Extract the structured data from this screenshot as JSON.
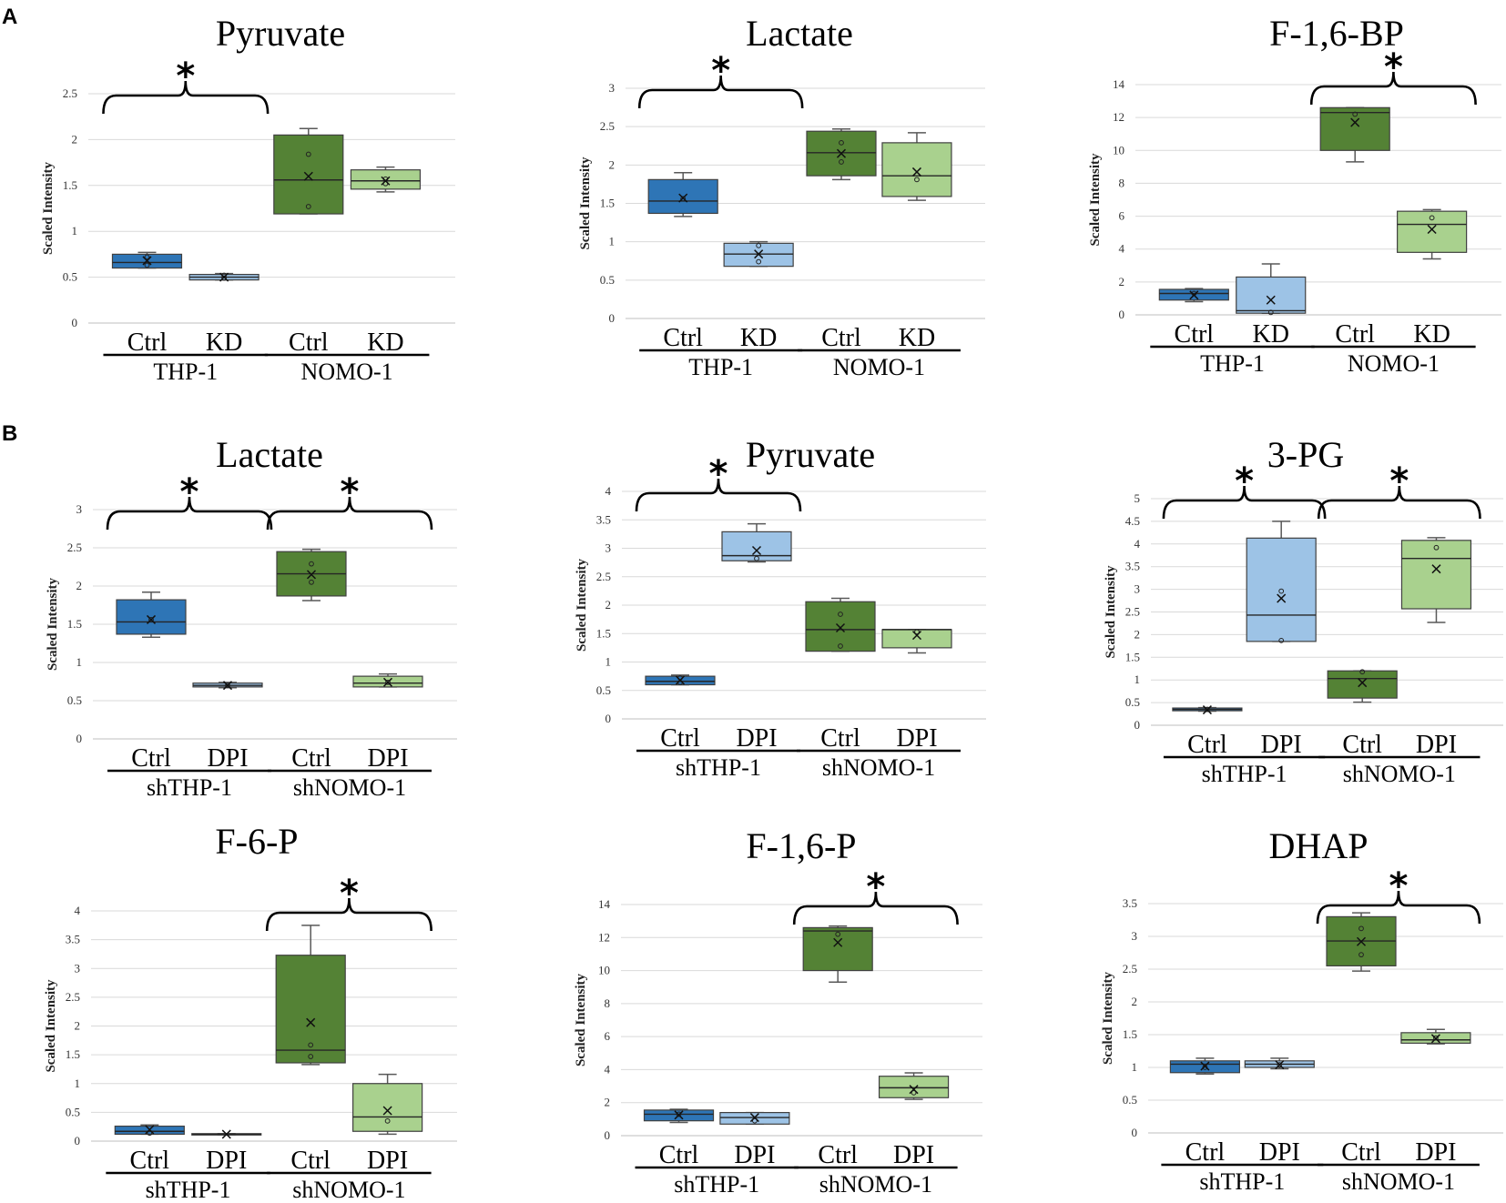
{
  "panels": [
    {
      "label": "A"
    },
    {
      "label": "B"
    }
  ],
  "colors": {
    "THP1_ctrl": "#2e75b6",
    "THP1_treat": "#9dc3e6",
    "NOMO1_ctrl": "#548235",
    "NOMO1_treat": "#a9d18e",
    "grid": "#d9d9d9",
    "whisker": "#595959"
  },
  "chart_data": [
    {
      "type": "box",
      "panel": "A",
      "title": "Pyruvate",
      "ylabel": "Scaled Intensity",
      "ylim": [
        0,
        2.5
      ],
      "yticks": [
        "0",
        "0.5",
        "1",
        "1.5",
        "2",
        "2.5"
      ],
      "categories": [
        "Ctrl",
        "KD",
        "Ctrl",
        "KD"
      ],
      "groups": [
        "THP-1",
        "NOMO-1"
      ],
      "boxes": [
        {
          "min": 0.6,
          "q1": 0.6,
          "median": 0.66,
          "q3": 0.75,
          "max": 0.77,
          "mean": 0.68,
          "points": [
            0.63,
            0.72
          ]
        },
        {
          "min": 0.47,
          "q1": 0.47,
          "median": 0.5,
          "q3": 0.53,
          "max": 0.54,
          "mean": 0.5,
          "points": [
            0.49,
            0.52
          ]
        },
        {
          "min": 1.19,
          "q1": 1.19,
          "median": 1.56,
          "q3": 2.05,
          "max": 2.12,
          "mean": 1.6,
          "points": [
            1.27,
            1.84
          ]
        },
        {
          "min": 1.43,
          "q1": 1.46,
          "median": 1.55,
          "q3": 1.67,
          "max": 1.7,
          "mean": 1.55,
          "points": [
            1.52,
            1.57
          ]
        }
      ],
      "significance": [
        {
          "groups": [
            0,
            1
          ],
          "label": "*"
        }
      ]
    },
    {
      "type": "box",
      "panel": "A",
      "title": "Lactate",
      "ylabel": "Scaled Intensity",
      "ylim": [
        0,
        3
      ],
      "yticks": [
        "0",
        "0.5",
        "1",
        "1.5",
        "2",
        "2.5",
        "3"
      ],
      "categories": [
        "Ctrl",
        "KD",
        "Ctrl",
        "KD"
      ],
      "groups": [
        "THP-1",
        "NOMO-1"
      ],
      "boxes": [
        {
          "min": 1.33,
          "q1": 1.37,
          "median": 1.53,
          "q3": 1.81,
          "max": 1.9,
          "mean": 1.57,
          "points": [
            1.56
          ]
        },
        {
          "min": 0.68,
          "q1": 0.68,
          "median": 0.84,
          "q3": 0.98,
          "max": 1.0,
          "mean": 0.84,
          "points": [
            0.74,
            0.95
          ]
        },
        {
          "min": 1.81,
          "q1": 1.86,
          "median": 2.16,
          "q3": 2.44,
          "max": 2.47,
          "mean": 2.15,
          "points": [
            2.04,
            2.29
          ]
        },
        {
          "min": 1.54,
          "q1": 1.59,
          "median": 1.86,
          "q3": 2.29,
          "max": 2.42,
          "mean": 1.91,
          "points": [
            1.81
          ]
        }
      ],
      "significance": [
        {
          "groups": [
            0,
            1
          ],
          "label": "*"
        }
      ]
    },
    {
      "type": "box",
      "panel": "A",
      "title": "F-1,6-BP",
      "ylabel": "Scaled Intensity",
      "ylim": [
        0,
        14
      ],
      "yticks": [
        "0",
        "2",
        "4",
        "6",
        "8",
        "10",
        "12",
        "14"
      ],
      "categories": [
        "Ctrl",
        "KD",
        "Ctrl",
        "KD"
      ],
      "groups": [
        "THP-1",
        "NOMO-1"
      ],
      "boxes": [
        {
          "min": 0.8,
          "q1": 0.9,
          "median": 1.3,
          "q3": 1.55,
          "max": 1.6,
          "mean": 1.2,
          "points": [
            1.3
          ]
        },
        {
          "min": 0.1,
          "q1": 0.1,
          "median": 0.25,
          "q3": 2.3,
          "max": 3.1,
          "mean": 0.9,
          "points": [
            0.15
          ]
        },
        {
          "min": 9.3,
          "q1": 10.0,
          "median": 12.3,
          "q3": 12.6,
          "max": 12.6,
          "mean": 11.7,
          "points": [
            12.2
          ]
        },
        {
          "min": 3.4,
          "q1": 3.8,
          "median": 5.5,
          "q3": 6.3,
          "max": 6.4,
          "mean": 5.2,
          "points": [
            5.9
          ]
        }
      ],
      "significance": [
        {
          "groups": [
            2,
            3
          ],
          "label": "*"
        }
      ]
    },
    {
      "type": "box",
      "panel": "B",
      "title": "Lactate",
      "ylabel": "Scaled Intensity",
      "ylim": [
        0,
        3
      ],
      "yticks": [
        "0",
        "0.5",
        "1",
        "1.5",
        "2",
        "2.5",
        "3"
      ],
      "categories": [
        "Ctrl",
        "DPI",
        "Ctrl",
        "DPI"
      ],
      "groups": [
        "shTHP-1",
        "shNOMO-1"
      ],
      "boxes": [
        {
          "min": 1.33,
          "q1": 1.37,
          "median": 1.53,
          "q3": 1.82,
          "max": 1.92,
          "mean": 1.56,
          "points": [
            1.56
          ]
        },
        {
          "min": 0.67,
          "q1": 0.68,
          "median": 0.7,
          "q3": 0.73,
          "max": 0.74,
          "mean": 0.7,
          "points": [
            0.7
          ]
        },
        {
          "min": 1.81,
          "q1": 1.87,
          "median": 2.16,
          "q3": 2.45,
          "max": 2.48,
          "mean": 2.15,
          "points": [
            2.05,
            2.29
          ]
        },
        {
          "min": 0.68,
          "q1": 0.68,
          "median": 0.73,
          "q3": 0.82,
          "max": 0.85,
          "mean": 0.74,
          "points": [
            0.74
          ]
        }
      ],
      "significance": [
        {
          "groups": [
            0,
            1
          ],
          "label": "*"
        },
        {
          "groups": [
            2,
            3
          ],
          "label": "*"
        }
      ]
    },
    {
      "type": "box",
      "panel": "B",
      "title": "Pyruvate",
      "ylabel": "Scaled Intensity",
      "ylim": [
        0,
        4
      ],
      "yticks": [
        "0",
        "0.5",
        "1",
        "1.5",
        "2",
        "2.5",
        "3",
        "3.5",
        "4"
      ],
      "categories": [
        "Ctrl",
        "DPI",
        "Ctrl",
        "DPI"
      ],
      "groups": [
        "shTHP-1",
        "shNOMO-1"
      ],
      "boxes": [
        {
          "min": 0.6,
          "q1": 0.6,
          "median": 0.66,
          "q3": 0.75,
          "max": 0.77,
          "mean": 0.68,
          "points": [
            0.64,
            0.72
          ]
        },
        {
          "min": 2.76,
          "q1": 2.78,
          "median": 2.87,
          "q3": 3.29,
          "max": 3.43,
          "mean": 2.96,
          "points": [
            2.82
          ]
        },
        {
          "min": 1.19,
          "q1": 1.19,
          "median": 1.57,
          "q3": 2.06,
          "max": 2.12,
          "mean": 1.6,
          "points": [
            1.28,
            1.84
          ]
        },
        {
          "min": 1.16,
          "q1": 1.25,
          "median": 1.57,
          "q3": 1.57,
          "max": 1.57,
          "mean": 1.47,
          "points": [
            1.53
          ]
        }
      ],
      "significance": [
        {
          "groups": [
            0,
            1
          ],
          "label": "*"
        }
      ]
    },
    {
      "type": "box",
      "panel": "B",
      "title": "3-PG",
      "ylabel": "Scaled Intensity",
      "ylim": [
        0,
        5
      ],
      "yticks": [
        "0",
        "0.5",
        "1",
        "1.5",
        "2",
        "2.5",
        "3",
        "3.5",
        "4",
        "4.5",
        "5"
      ],
      "categories": [
        "Ctrl",
        "DPI",
        "Ctrl",
        "DPI"
      ],
      "groups": [
        "shTHP-1",
        "shNOMO-1"
      ],
      "boxes": [
        {
          "min": 0.31,
          "q1": 0.32,
          "median": 0.35,
          "q3": 0.38,
          "max": 0.39,
          "mean": 0.34,
          "points": [
            0.35
          ]
        },
        {
          "min": 1.85,
          "q1": 1.85,
          "median": 2.43,
          "q3": 4.13,
          "max": 4.5,
          "mean": 2.8,
          "points": [
            1.87,
            2.96
          ]
        },
        {
          "min": 0.51,
          "q1": 0.6,
          "median": 1.03,
          "q3": 1.2,
          "max": 1.2,
          "mean": 0.94,
          "points": [
            1.18
          ]
        },
        {
          "min": 2.27,
          "q1": 2.57,
          "median": 3.68,
          "q3": 4.08,
          "max": 4.14,
          "mean": 3.45,
          "points": [
            3.92
          ]
        }
      ],
      "significance": [
        {
          "groups": [
            0,
            1
          ],
          "label": "*"
        },
        {
          "groups": [
            2,
            3
          ],
          "label": "*"
        }
      ]
    },
    {
      "type": "box",
      "panel": "B",
      "title": "F-6-P",
      "ylabel": "Scaled Intensity",
      "ylim": [
        0,
        4
      ],
      "yticks": [
        "0",
        "0.5",
        "1",
        "1.5",
        "2",
        "2.5",
        "3",
        "3.5",
        "4"
      ],
      "categories": [
        "Ctrl",
        "DPI",
        "Ctrl",
        "DPI"
      ],
      "groups": [
        "shTHP-1",
        "shNOMO-1"
      ],
      "boxes": [
        {
          "min": 0.12,
          "q1": 0.12,
          "median": 0.17,
          "q3": 0.26,
          "max": 0.28,
          "mean": 0.2,
          "points": [
            0.14
          ]
        },
        {
          "min": 0.11,
          "q1": 0.11,
          "median": 0.12,
          "q3": 0.13,
          "max": 0.13,
          "mean": 0.12,
          "points": []
        },
        {
          "min": 1.33,
          "q1": 1.36,
          "median": 1.58,
          "q3": 3.23,
          "max": 3.75,
          "mean": 2.06,
          "points": [
            1.47,
            1.67
          ]
        },
        {
          "min": 0.12,
          "q1": 0.17,
          "median": 0.42,
          "q3": 1.0,
          "max": 1.16,
          "mean": 0.53,
          "points": [
            0.35
          ]
        }
      ],
      "significance": [
        {
          "groups": [
            2,
            3
          ],
          "label": "*"
        }
      ]
    },
    {
      "type": "box",
      "panel": "B",
      "title": "F-1,6-P",
      "ylabel": "Scaled Intensity",
      "ylim": [
        0,
        14
      ],
      "yticks": [
        "0",
        "2",
        "4",
        "6",
        "8",
        "10",
        "12",
        "14"
      ],
      "categories": [
        "Ctrl",
        "DPI",
        "Ctrl",
        "DPI"
      ],
      "groups": [
        "shTHP-1",
        "shNOMO-1"
      ],
      "boxes": [
        {
          "min": 0.8,
          "q1": 0.9,
          "median": 1.3,
          "q3": 1.55,
          "max": 1.6,
          "mean": 1.25,
          "points": [
            1.3
          ]
        },
        {
          "min": 0.7,
          "q1": 0.7,
          "median": 1.1,
          "q3": 1.4,
          "max": 1.4,
          "mean": 1.1,
          "points": [
            0.9
          ]
        },
        {
          "min": 9.3,
          "q1": 10.0,
          "median": 12.4,
          "q3": 12.6,
          "max": 12.7,
          "mean": 11.7,
          "points": [
            12.2
          ]
        },
        {
          "min": 2.2,
          "q1": 2.3,
          "median": 2.9,
          "q3": 3.6,
          "max": 3.8,
          "mean": 2.8,
          "points": [
            2.6
          ]
        }
      ],
      "significance": [
        {
          "groups": [
            2,
            3
          ],
          "label": "*"
        }
      ]
    },
    {
      "type": "box",
      "panel": "B",
      "title": "DHAP",
      "ylabel": "Scaled Intensity",
      "ylim": [
        0,
        3.5
      ],
      "yticks": [
        "0",
        "0.5",
        "1",
        "1.5",
        "2",
        "2.5",
        "3",
        "3.5"
      ],
      "categories": [
        "Ctrl",
        "DPI",
        "Ctrl",
        "DPI"
      ],
      "groups": [
        "shTHP-1",
        "shNOMO-1"
      ],
      "boxes": [
        {
          "min": 0.9,
          "q1": 0.92,
          "median": 1.05,
          "q3": 1.1,
          "max": 1.14,
          "mean": 1.02,
          "points": [
            1.0
          ]
        },
        {
          "min": 0.98,
          "q1": 1.0,
          "median": 1.05,
          "q3": 1.1,
          "max": 1.14,
          "mean": 1.04,
          "points": [
            1.04
          ]
        },
        {
          "min": 2.47,
          "q1": 2.55,
          "median": 2.93,
          "q3": 3.3,
          "max": 3.36,
          "mean": 2.92,
          "points": [
            2.72,
            3.12
          ]
        },
        {
          "min": 1.36,
          "q1": 1.37,
          "median": 1.42,
          "q3": 1.53,
          "max": 1.58,
          "mean": 1.44,
          "points": [
            1.45
          ]
        }
      ],
      "significance": [
        {
          "groups": [
            2,
            3
          ],
          "label": "*"
        }
      ]
    }
  ]
}
